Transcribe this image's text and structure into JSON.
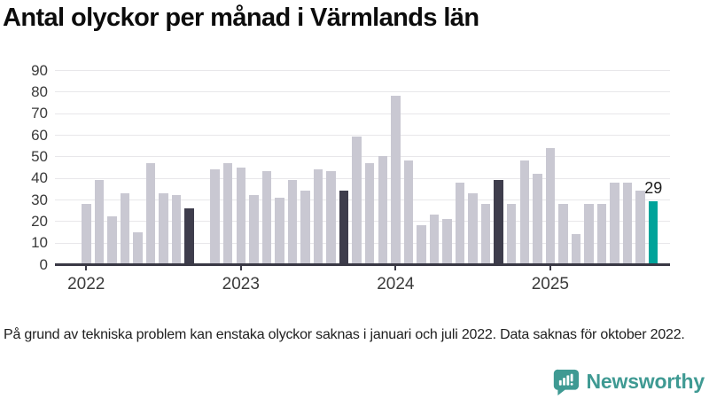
{
  "page": {
    "title": "Antal olyckor per månad i Värmlands län"
  },
  "footnote": "På grund av tekniska problem kan enstaka olyckor saknas i januari och juli 2022. Data saknas för oktober 2022.",
  "branding": {
    "name": "Newsworthy",
    "color": "#3F9A93",
    "icon": "newsworthy-chart-bubble-icon"
  },
  "chart_data": {
    "type": "bar",
    "title": "Antal olyckor per månad i Värmlands län",
    "xlabel": "",
    "ylabel": "",
    "ylim": [
      0,
      90
    ],
    "grid": "horizontal",
    "y_ticks": [
      0,
      10,
      20,
      30,
      40,
      50,
      60,
      70,
      80,
      90
    ],
    "x_ticks": [
      {
        "label": "2022",
        "month_index": 0
      },
      {
        "label": "2023",
        "month_index": 12
      },
      {
        "label": "2024",
        "month_index": 24
      },
      {
        "label": "2025",
        "month_index": 36
      }
    ],
    "palette": {
      "default": "#C9C8D2",
      "highlight": "#3E3D4C",
      "latest": "#00A39A"
    },
    "annotation": {
      "text": "29",
      "month_index": 44
    },
    "points": [
      {
        "month": "2022-01",
        "value": 28,
        "color": "default"
      },
      {
        "month": "2022-02",
        "value": 39,
        "color": "default"
      },
      {
        "month": "2022-03",
        "value": 22,
        "color": "default"
      },
      {
        "month": "2022-04",
        "value": 33,
        "color": "default"
      },
      {
        "month": "2022-05",
        "value": 15,
        "color": "default"
      },
      {
        "month": "2022-06",
        "value": 47,
        "color": "default"
      },
      {
        "month": "2022-07",
        "value": 33,
        "color": "default"
      },
      {
        "month": "2022-08",
        "value": 32,
        "color": "default"
      },
      {
        "month": "2022-09",
        "value": 26,
        "color": "highlight"
      },
      {
        "month": "2022-10",
        "value": null,
        "color": "default"
      },
      {
        "month": "2022-11",
        "value": 44,
        "color": "default"
      },
      {
        "month": "2022-12",
        "value": 47,
        "color": "default"
      },
      {
        "month": "2023-01",
        "value": 45,
        "color": "default"
      },
      {
        "month": "2023-02",
        "value": 32,
        "color": "default"
      },
      {
        "month": "2023-03",
        "value": 43,
        "color": "default"
      },
      {
        "month": "2023-04",
        "value": 31,
        "color": "default"
      },
      {
        "month": "2023-05",
        "value": 39,
        "color": "default"
      },
      {
        "month": "2023-06",
        "value": 34,
        "color": "default"
      },
      {
        "month": "2023-07",
        "value": 44,
        "color": "default"
      },
      {
        "month": "2023-08",
        "value": 43,
        "color": "default"
      },
      {
        "month": "2023-09",
        "value": 34,
        "color": "highlight"
      },
      {
        "month": "2023-10",
        "value": 59,
        "color": "default"
      },
      {
        "month": "2023-11",
        "value": 47,
        "color": "default"
      },
      {
        "month": "2023-12",
        "value": 50,
        "color": "default"
      },
      {
        "month": "2024-01",
        "value": 78,
        "color": "default"
      },
      {
        "month": "2024-02",
        "value": 48,
        "color": "default"
      },
      {
        "month": "2024-03",
        "value": 18,
        "color": "default"
      },
      {
        "month": "2024-04",
        "value": 23,
        "color": "default"
      },
      {
        "month": "2024-05",
        "value": 21,
        "color": "default"
      },
      {
        "month": "2024-06",
        "value": 38,
        "color": "default"
      },
      {
        "month": "2024-07",
        "value": 33,
        "color": "default"
      },
      {
        "month": "2024-08",
        "value": 28,
        "color": "default"
      },
      {
        "month": "2024-09",
        "value": 39,
        "color": "highlight"
      },
      {
        "month": "2024-10",
        "value": 28,
        "color": "default"
      },
      {
        "month": "2024-11",
        "value": 48,
        "color": "default"
      },
      {
        "month": "2024-12",
        "value": 42,
        "color": "default"
      },
      {
        "month": "2025-01",
        "value": 54,
        "color": "default"
      },
      {
        "month": "2025-02",
        "value": 28,
        "color": "default"
      },
      {
        "month": "2025-03",
        "value": 14,
        "color": "default"
      },
      {
        "month": "2025-04",
        "value": 28,
        "color": "default"
      },
      {
        "month": "2025-05",
        "value": 28,
        "color": "default"
      },
      {
        "month": "2025-06",
        "value": 38,
        "color": "default"
      },
      {
        "month": "2025-07",
        "value": 38,
        "color": "default"
      },
      {
        "month": "2025-08",
        "value": 34,
        "color": "default"
      },
      {
        "month": "2025-09",
        "value": 29,
        "color": "latest"
      }
    ]
  }
}
